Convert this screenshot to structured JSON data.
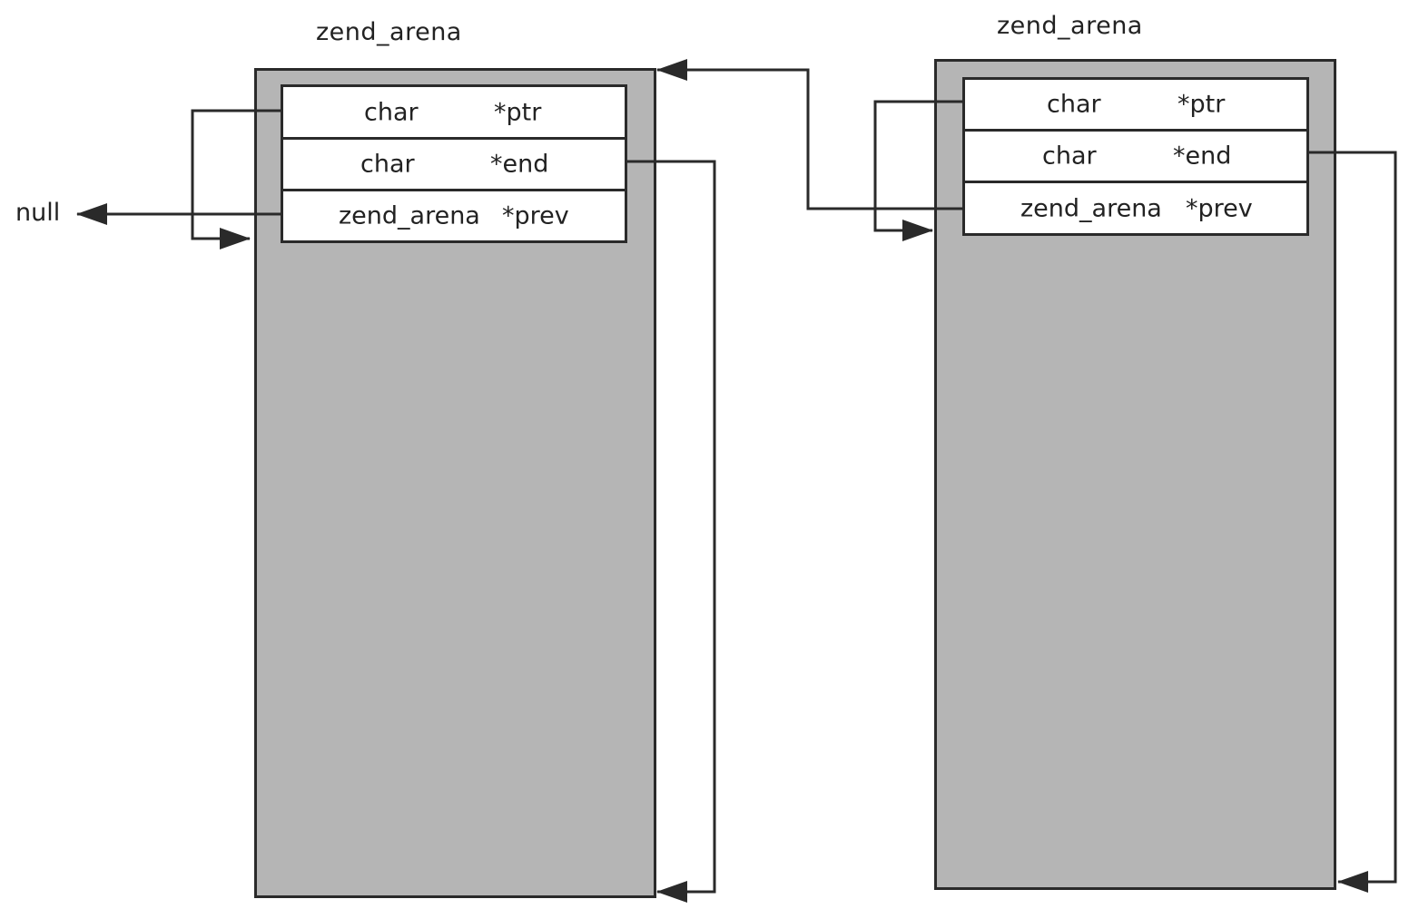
{
  "left_arena": {
    "title": "zend_arena",
    "fields": [
      {
        "type": "char",
        "name": "*ptr"
      },
      {
        "type": "char",
        "name": "*end"
      },
      {
        "type": "zend_arena",
        "name": "*prev"
      }
    ]
  },
  "right_arena": {
    "title": "zend_arena",
    "fields": [
      {
        "type": "char",
        "name": "*ptr"
      },
      {
        "type": "char",
        "name": "*end"
      },
      {
        "type": "zend_arena",
        "name": "*prev"
      }
    ]
  },
  "null_label": "null",
  "colors": {
    "block_fill": "#b5b5b5",
    "stroke": "#2a2a2a",
    "field_fill": "#ffffff"
  }
}
